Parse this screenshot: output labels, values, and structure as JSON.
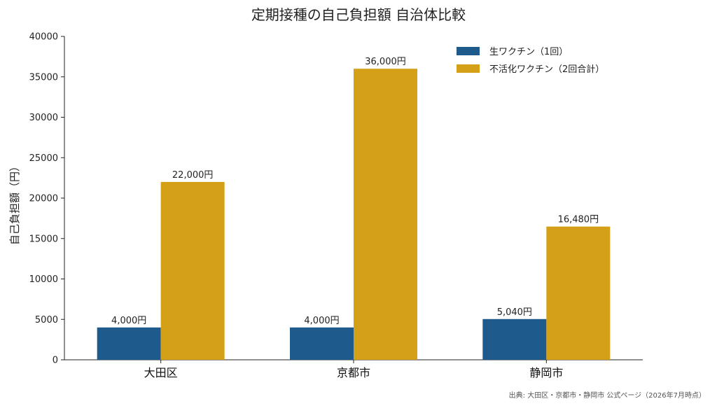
{
  "chart_data": {
    "type": "bar",
    "title": "定期接種の自己負担額 自治体比較",
    "ylabel": "自己負担額（円）",
    "xlabel": "",
    "categories": [
      "大田区",
      "京都市",
      "静岡市"
    ],
    "series": [
      {
        "name": "生ワクチン（1回）",
        "values": [
          4000,
          4000,
          5040
        ],
        "labels": [
          "4,000円",
          "4,000円",
          "5,040円"
        ],
        "color": "#1f5a8c"
      },
      {
        "name": "不活化ワクチン（2回合計）",
        "values": [
          22000,
          36000,
          16480
        ],
        "labels": [
          "22,000円",
          "36,000円",
          "16,480円"
        ],
        "color": "#d4a017"
      }
    ],
    "ylim": [
      0,
      40000
    ],
    "yticks": [
      "0",
      "5000",
      "10000",
      "15000",
      "20000",
      "25000",
      "30000",
      "35000",
      "40000"
    ],
    "ytick_values": [
      0,
      5000,
      10000,
      15000,
      20000,
      25000,
      30000,
      35000,
      40000
    ],
    "legend": "top-right",
    "grid": false,
    "source": "出典: 大田区・京都市・静岡市 公式ページ（2026年7月時点）"
  }
}
